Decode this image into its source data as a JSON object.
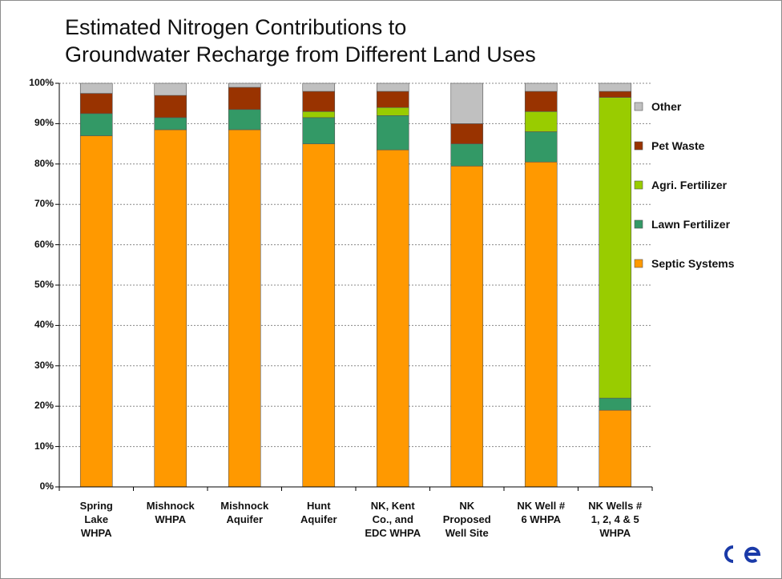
{
  "chart_data": {
    "type": "stacked_bar",
    "title": [
      "Estimated Nitrogen Contributions to",
      "Groundwater Recharge from Different Land Uses"
    ],
    "categories": [
      [
        "Spring",
        "Lake",
        "WHPA"
      ],
      [
        "Mishnock",
        "WHPA"
      ],
      [
        "Mishnock",
        "Aquifer"
      ],
      [
        "Hunt",
        "Aquifer"
      ],
      [
        "NK, Kent",
        "Co., and",
        "EDC WHPA"
      ],
      [
        "NK",
        "Proposed",
        "Well Site"
      ],
      [
        "NK Well #",
        "6 WHPA"
      ],
      [
        "NK Wells #",
        "1, 2, 4 & 5",
        "WHPA"
      ]
    ],
    "series": [
      {
        "name": "Septic Systems",
        "color": "#ff9900",
        "values": [
          87,
          88.5,
          88.5,
          85,
          83.5,
          79.5,
          80.5,
          19
        ]
      },
      {
        "name": "Lawn Fertilizer",
        "color": "#339966",
        "values": [
          5.5,
          3,
          5,
          6.5,
          8.5,
          5.5,
          7.5,
          3
        ]
      },
      {
        "name": "Agri. Fertilizer",
        "color": "#99cc00",
        "values": [
          0,
          0,
          0,
          1.5,
          2,
          0,
          5,
          74.5
        ]
      },
      {
        "name": "Pet Waste",
        "color": "#993300",
        "values": [
          5,
          5.5,
          5.5,
          5,
          4,
          5,
          5,
          1.5
        ]
      },
      {
        "name": "Other",
        "color": "#c0c0c0",
        "values": [
          2.5,
          3,
          1,
          2,
          2,
          10,
          2,
          2
        ]
      }
    ],
    "ylim": [
      0,
      100
    ],
    "yticks": [
      {
        "value": 0,
        "label": "0%"
      },
      {
        "value": 10,
        "label": "10%"
      },
      {
        "value": 20,
        "label": "20%"
      },
      {
        "value": 30,
        "label": "30%"
      },
      {
        "value": 40,
        "label": "40%"
      },
      {
        "value": 50,
        "label": "50%"
      },
      {
        "value": 60,
        "label": "60%"
      },
      {
        "value": 70,
        "label": "70%"
      },
      {
        "value": 80,
        "label": "80%"
      },
      {
        "value": 90,
        "label": "90%"
      },
      {
        "value": 100,
        "label": "100%"
      }
    ],
    "grid": true,
    "legend": "right"
  }
}
